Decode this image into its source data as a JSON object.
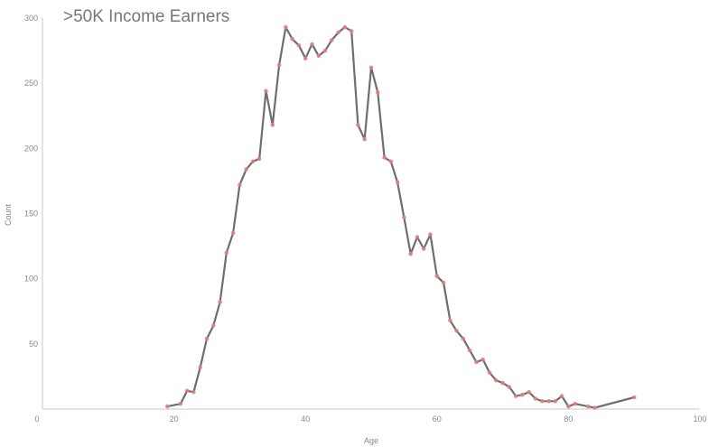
{
  "chart_data": {
    "type": "line",
    "title": ">50K Income Earners",
    "xlabel": "Age",
    "ylabel": "Count",
    "xlim": [
      0,
      100
    ],
    "ylim": [
      0,
      300
    ],
    "x_ticks": [
      "0",
      "20",
      "40",
      "60",
      "80",
      "100"
    ],
    "y_ticks": [
      "300",
      "250",
      "200",
      "150",
      "100",
      "50"
    ],
    "grid": false,
    "colors": {
      "line": "#6e6e6e",
      "marker": "#e38080",
      "axis": "#c8c8c8",
      "text": "#888888"
    },
    "series": [
      {
        "x": [
          19,
          21,
          22,
          23,
          24,
          25,
          26,
          27,
          28,
          29,
          30,
          31,
          32,
          33,
          34,
          35,
          36,
          37,
          38,
          39,
          40,
          41,
          42,
          43,
          44,
          45,
          46,
          47,
          48,
          49,
          50,
          51,
          52,
          53,
          54,
          55,
          56,
          57,
          58,
          59,
          60,
          61,
          62,
          63,
          64,
          65,
          66,
          67,
          68,
          69,
          70,
          71,
          72,
          73,
          74,
          75,
          76,
          77,
          78,
          79,
          80,
          81,
          83,
          84,
          90
        ],
        "y": [
          2,
          4,
          14,
          13,
          32,
          54,
          64,
          82,
          120,
          135,
          172,
          184,
          190,
          192,
          244,
          218,
          264,
          293,
          284,
          279,
          269,
          280,
          271,
          275,
          283,
          289,
          293,
          290,
          218,
          207,
          262,
          243,
          193,
          190,
          174,
          147,
          119,
          132,
          123,
          134,
          102,
          97,
          68,
          60,
          54,
          45,
          36,
          38,
          28,
          22,
          20,
          17,
          10,
          11,
          13,
          8,
          6,
          6,
          6,
          10,
          2,
          4,
          2,
          1,
          9
        ]
      }
    ]
  }
}
